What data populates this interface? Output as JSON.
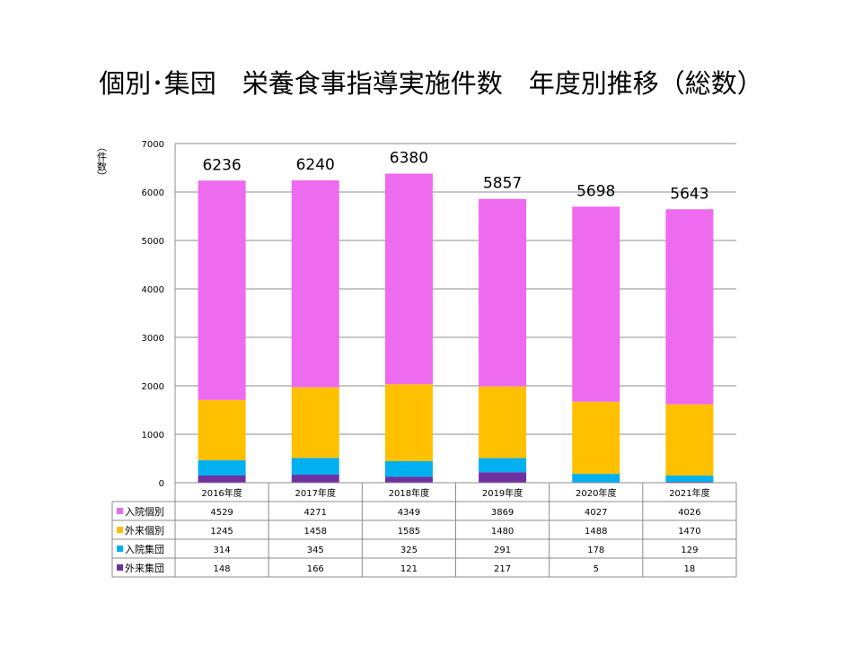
{
  "title": "個別･集団　栄養食事指導実施件数　年度別推移（総数）",
  "chart_data": {
    "type": "bar",
    "stacked": true,
    "categories": [
      "2016年度",
      "2017年度",
      "2018年度",
      "2019年度",
      "2020年度",
      "2021年度"
    ],
    "ylabel": "（件数）",
    "ylim": [
      0,
      7000
    ],
    "yticks": [
      0,
      1000,
      2000,
      3000,
      4000,
      5000,
      6000,
      7000
    ],
    "grid": true,
    "totals": [
      6236,
      6240,
      6380,
      5857,
      5698,
      5643
    ],
    "series": [
      {
        "name": "入院個別",
        "color": "#ee6aee",
        "values": [
          4529,
          4271,
          4349,
          3869,
          4027,
          4026
        ]
      },
      {
        "name": "外来個別",
        "color": "#ffc000",
        "values": [
          1245,
          1458,
          1585,
          1480,
          1488,
          1470
        ]
      },
      {
        "name": "入院集団",
        "color": "#00b0f0",
        "values": [
          314,
          345,
          325,
          291,
          178,
          129
        ]
      },
      {
        "name": "外来集団",
        "color": "#7030a0",
        "values": [
          148,
          166,
          121,
          217,
          5,
          18
        ]
      }
    ],
    "data_table": true
  }
}
